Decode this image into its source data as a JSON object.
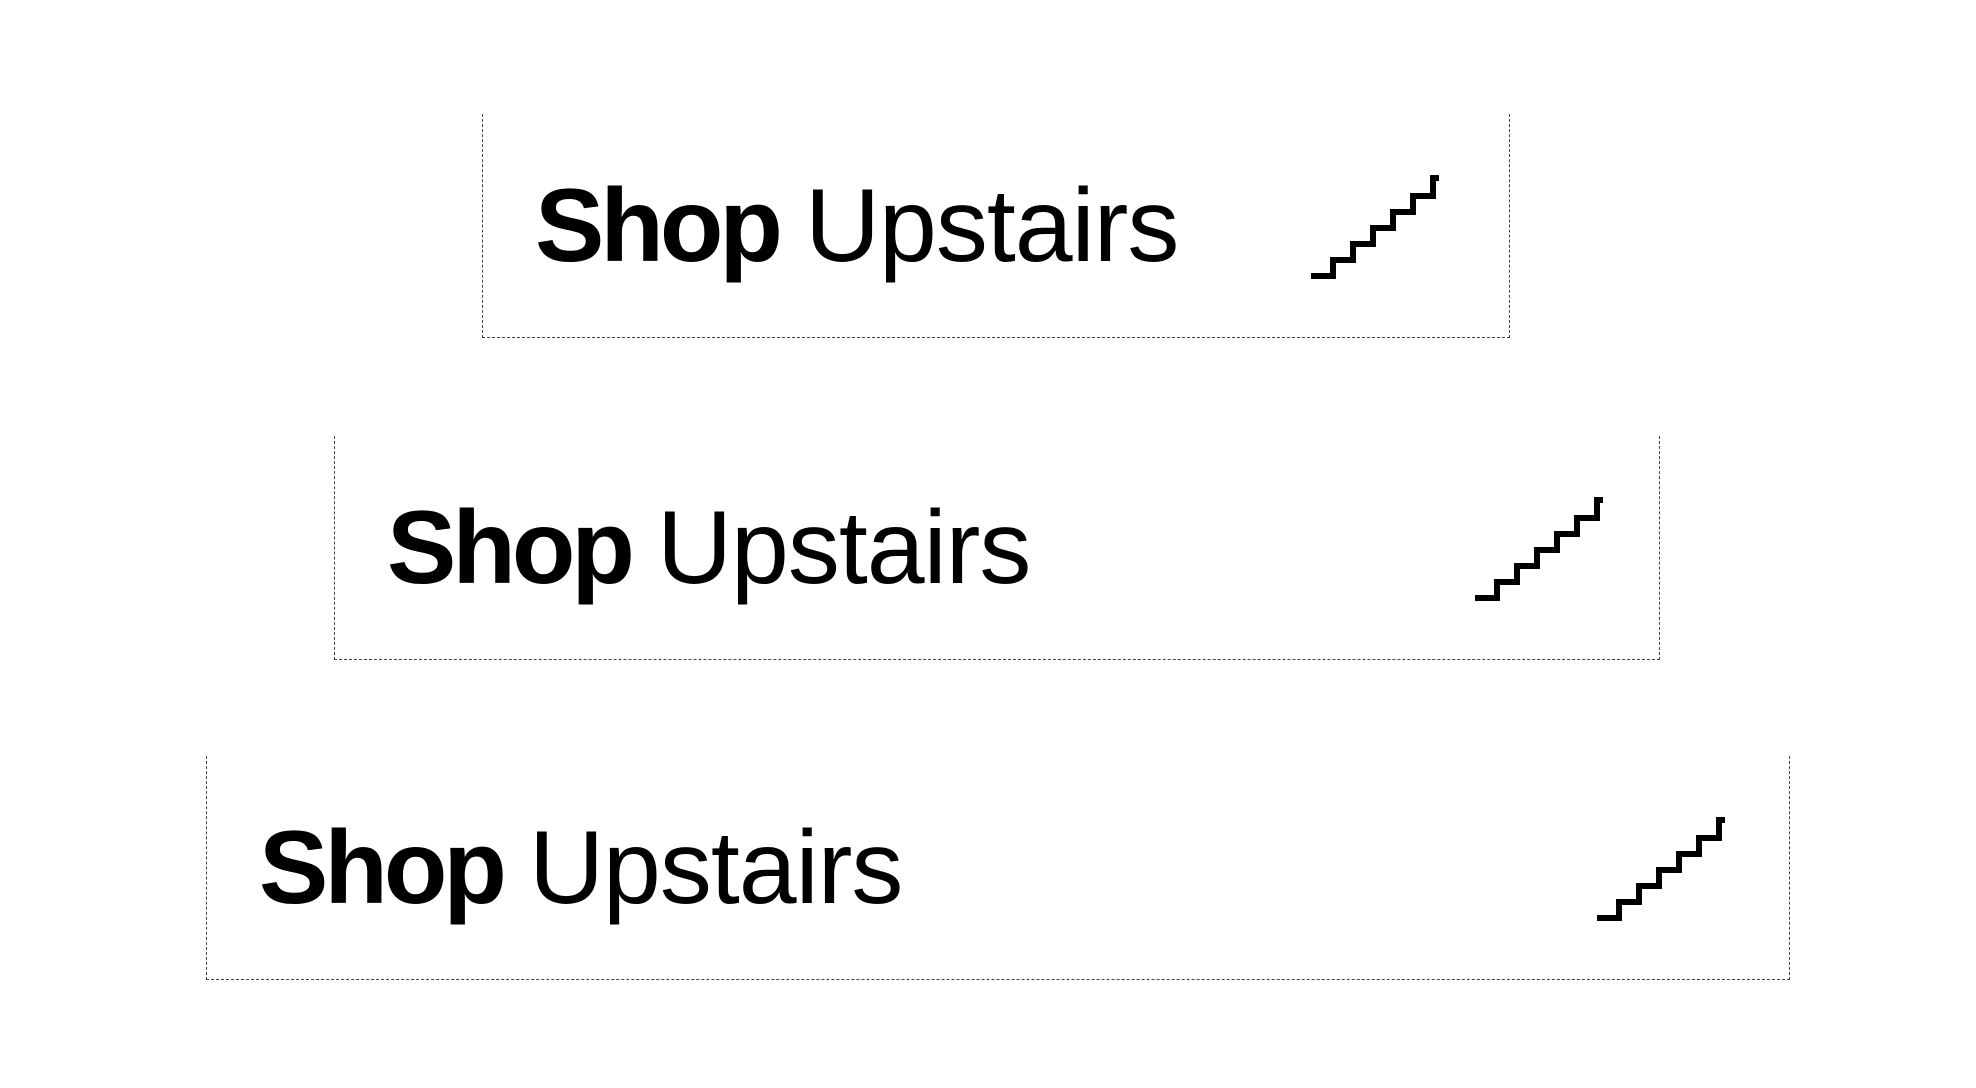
{
  "banners": [
    {
      "bold": "Shop",
      "light": "Upstairs",
      "icon": "stairs-icon"
    },
    {
      "bold": "Shop",
      "light": "Upstairs",
      "icon": "stairs-icon"
    },
    {
      "bold": "Shop",
      "light": "Upstairs",
      "icon": "stairs-icon"
    }
  ],
  "colors": {
    "text": "#000000",
    "background": "#ffffff",
    "dashed_border": "#444444"
  }
}
